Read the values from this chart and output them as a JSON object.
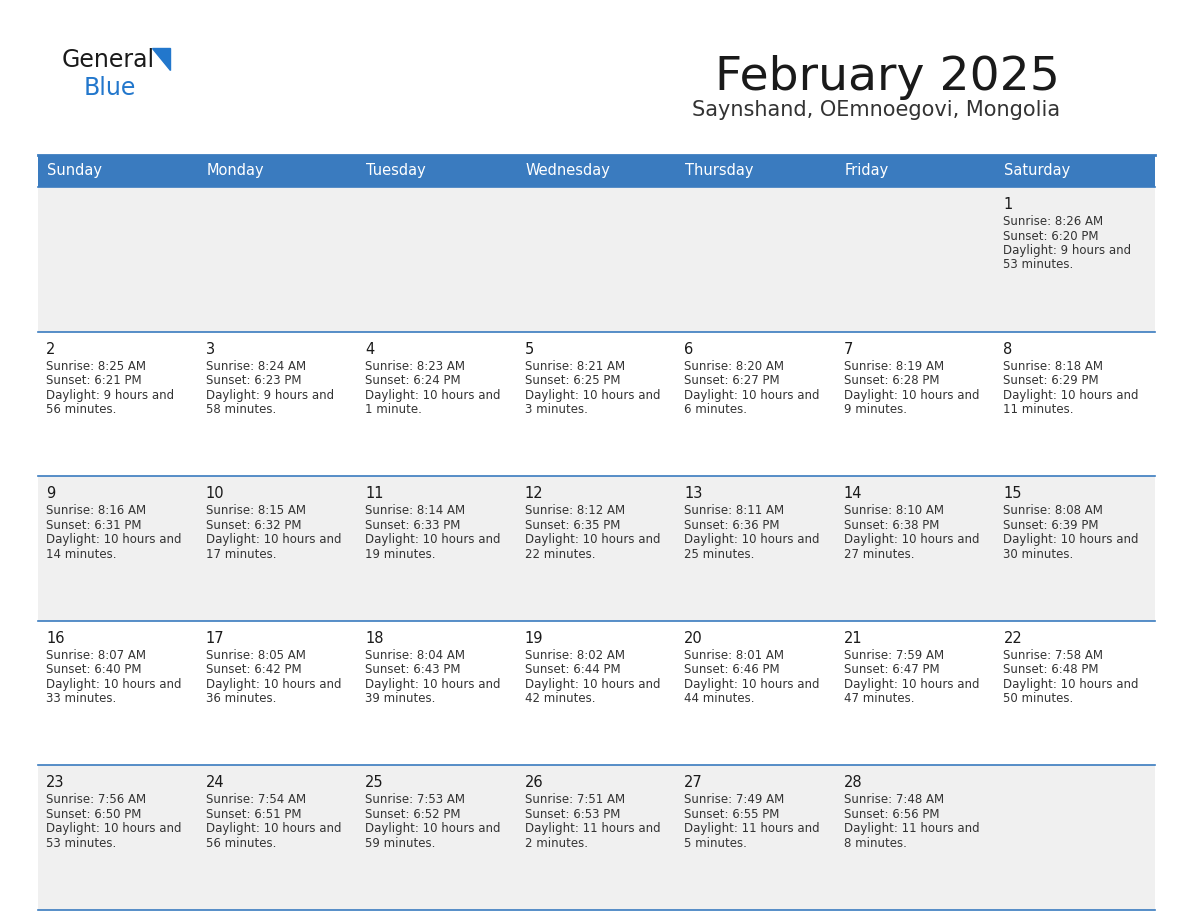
{
  "title": "February 2025",
  "subtitle": "Saynshand, OEmnoegovi, Mongolia",
  "header_bg": "#3a7bbf",
  "header_text": "#ffffff",
  "cell_bg_row0": "#f0f0f0",
  "cell_bg_odd": "#f0f0f0",
  "cell_bg_even": "#ffffff",
  "day_headers": [
    "Sunday",
    "Monday",
    "Tuesday",
    "Wednesday",
    "Thursday",
    "Friday",
    "Saturday"
  ],
  "days": [
    {
      "day": 1,
      "col": 6,
      "row": 0,
      "sunrise": "8:26 AM",
      "sunset": "6:20 PM",
      "daylight": "9 hours and 53 minutes."
    },
    {
      "day": 2,
      "col": 0,
      "row": 1,
      "sunrise": "8:25 AM",
      "sunset": "6:21 PM",
      "daylight": "9 hours and 56 minutes."
    },
    {
      "day": 3,
      "col": 1,
      "row": 1,
      "sunrise": "8:24 AM",
      "sunset": "6:23 PM",
      "daylight": "9 hours and 58 minutes."
    },
    {
      "day": 4,
      "col": 2,
      "row": 1,
      "sunrise": "8:23 AM",
      "sunset": "6:24 PM",
      "daylight": "10 hours and 1 minute."
    },
    {
      "day": 5,
      "col": 3,
      "row": 1,
      "sunrise": "8:21 AM",
      "sunset": "6:25 PM",
      "daylight": "10 hours and 3 minutes."
    },
    {
      "day": 6,
      "col": 4,
      "row": 1,
      "sunrise": "8:20 AM",
      "sunset": "6:27 PM",
      "daylight": "10 hours and 6 minutes."
    },
    {
      "day": 7,
      "col": 5,
      "row": 1,
      "sunrise": "8:19 AM",
      "sunset": "6:28 PM",
      "daylight": "10 hours and 9 minutes."
    },
    {
      "day": 8,
      "col": 6,
      "row": 1,
      "sunrise": "8:18 AM",
      "sunset": "6:29 PM",
      "daylight": "10 hours and 11 minutes."
    },
    {
      "day": 9,
      "col": 0,
      "row": 2,
      "sunrise": "8:16 AM",
      "sunset": "6:31 PM",
      "daylight": "10 hours and 14 minutes."
    },
    {
      "day": 10,
      "col": 1,
      "row": 2,
      "sunrise": "8:15 AM",
      "sunset": "6:32 PM",
      "daylight": "10 hours and 17 minutes."
    },
    {
      "day": 11,
      "col": 2,
      "row": 2,
      "sunrise": "8:14 AM",
      "sunset": "6:33 PM",
      "daylight": "10 hours and 19 minutes."
    },
    {
      "day": 12,
      "col": 3,
      "row": 2,
      "sunrise": "8:12 AM",
      "sunset": "6:35 PM",
      "daylight": "10 hours and 22 minutes."
    },
    {
      "day": 13,
      "col": 4,
      "row": 2,
      "sunrise": "8:11 AM",
      "sunset": "6:36 PM",
      "daylight": "10 hours and 25 minutes."
    },
    {
      "day": 14,
      "col": 5,
      "row": 2,
      "sunrise": "8:10 AM",
      "sunset": "6:38 PM",
      "daylight": "10 hours and 27 minutes."
    },
    {
      "day": 15,
      "col": 6,
      "row": 2,
      "sunrise": "8:08 AM",
      "sunset": "6:39 PM",
      "daylight": "10 hours and 30 minutes."
    },
    {
      "day": 16,
      "col": 0,
      "row": 3,
      "sunrise": "8:07 AM",
      "sunset": "6:40 PM",
      "daylight": "10 hours and 33 minutes."
    },
    {
      "day": 17,
      "col": 1,
      "row": 3,
      "sunrise": "8:05 AM",
      "sunset": "6:42 PM",
      "daylight": "10 hours and 36 minutes."
    },
    {
      "day": 18,
      "col": 2,
      "row": 3,
      "sunrise": "8:04 AM",
      "sunset": "6:43 PM",
      "daylight": "10 hours and 39 minutes."
    },
    {
      "day": 19,
      "col": 3,
      "row": 3,
      "sunrise": "8:02 AM",
      "sunset": "6:44 PM",
      "daylight": "10 hours and 42 minutes."
    },
    {
      "day": 20,
      "col": 4,
      "row": 3,
      "sunrise": "8:01 AM",
      "sunset": "6:46 PM",
      "daylight": "10 hours and 44 minutes."
    },
    {
      "day": 21,
      "col": 5,
      "row": 3,
      "sunrise": "7:59 AM",
      "sunset": "6:47 PM",
      "daylight": "10 hours and 47 minutes."
    },
    {
      "day": 22,
      "col": 6,
      "row": 3,
      "sunrise": "7:58 AM",
      "sunset": "6:48 PM",
      "daylight": "10 hours and 50 minutes."
    },
    {
      "day": 23,
      "col": 0,
      "row": 4,
      "sunrise": "7:56 AM",
      "sunset": "6:50 PM",
      "daylight": "10 hours and 53 minutes."
    },
    {
      "day": 24,
      "col": 1,
      "row": 4,
      "sunrise": "7:54 AM",
      "sunset": "6:51 PM",
      "daylight": "10 hours and 56 minutes."
    },
    {
      "day": 25,
      "col": 2,
      "row": 4,
      "sunrise": "7:53 AM",
      "sunset": "6:52 PM",
      "daylight": "10 hours and 59 minutes."
    },
    {
      "day": 26,
      "col": 3,
      "row": 4,
      "sunrise": "7:51 AM",
      "sunset": "6:53 PM",
      "daylight": "11 hours and 2 minutes."
    },
    {
      "day": 27,
      "col": 4,
      "row": 4,
      "sunrise": "7:49 AM",
      "sunset": "6:55 PM",
      "daylight": "11 hours and 5 minutes."
    },
    {
      "day": 28,
      "col": 5,
      "row": 4,
      "sunrise": "7:48 AM",
      "sunset": "6:56 PM",
      "daylight": "11 hours and 8 minutes."
    }
  ],
  "divider_color": "#3a7bbf"
}
